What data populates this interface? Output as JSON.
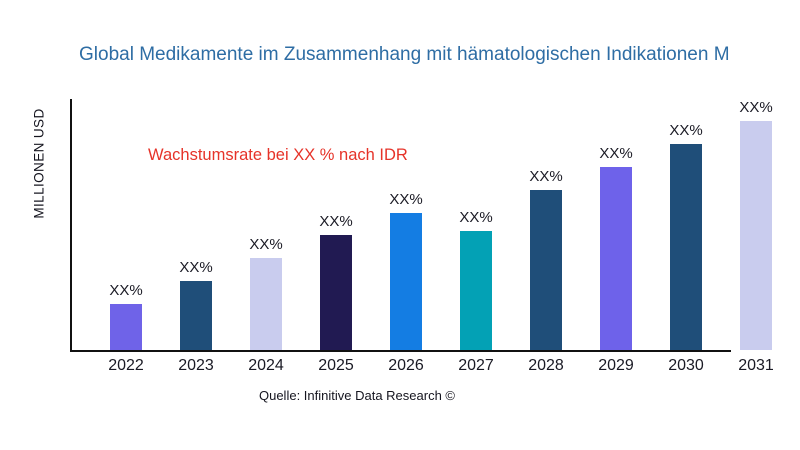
{
  "title": {
    "text": "Global Medikamente im Zusammenhang mit hämatologischen Indikationen M",
    "color": "#2e6da4"
  },
  "annotation": {
    "text": "Wachstumsrate bei XX % nach IDR",
    "color": "#e63329"
  },
  "axes": {
    "y_label": "MILLIONEN USD"
  },
  "source": {
    "text": "Quelle: Infinitive Data Research ©"
  },
  "chart_data": {
    "type": "bar",
    "title": "Global Medikamente im Zusammenhang mit hämatologischen Indikationen M",
    "xlabel": "",
    "ylabel": "MILLIONEN USD",
    "categories": [
      "2022",
      "2023",
      "2024",
      "2025",
      "2026",
      "2027",
      "2028",
      "2029",
      "2030",
      "2031"
    ],
    "value_labels": [
      "XX%",
      "XX%",
      "XX%",
      "XX%",
      "XX%",
      "XX%",
      "XX%",
      "XX%",
      "XX%",
      "XX%"
    ],
    "relative_height_pct": [
      20,
      30,
      40,
      50,
      60,
      52,
      70,
      80,
      90,
      100
    ],
    "bar_colors": [
      "#6f63e8",
      "#1f4e79",
      "#c9ccee",
      "#211a52",
      "#147de3",
      "#03a1b5",
      "#1f4e79",
      "#6e62ea",
      "#1f4e79",
      "#c9ccee"
    ],
    "grid": false,
    "legend": false,
    "annotation": "Wachstumsrate bei XX % nach IDR",
    "source": "Quelle: Infinitive Data Research ©"
  }
}
